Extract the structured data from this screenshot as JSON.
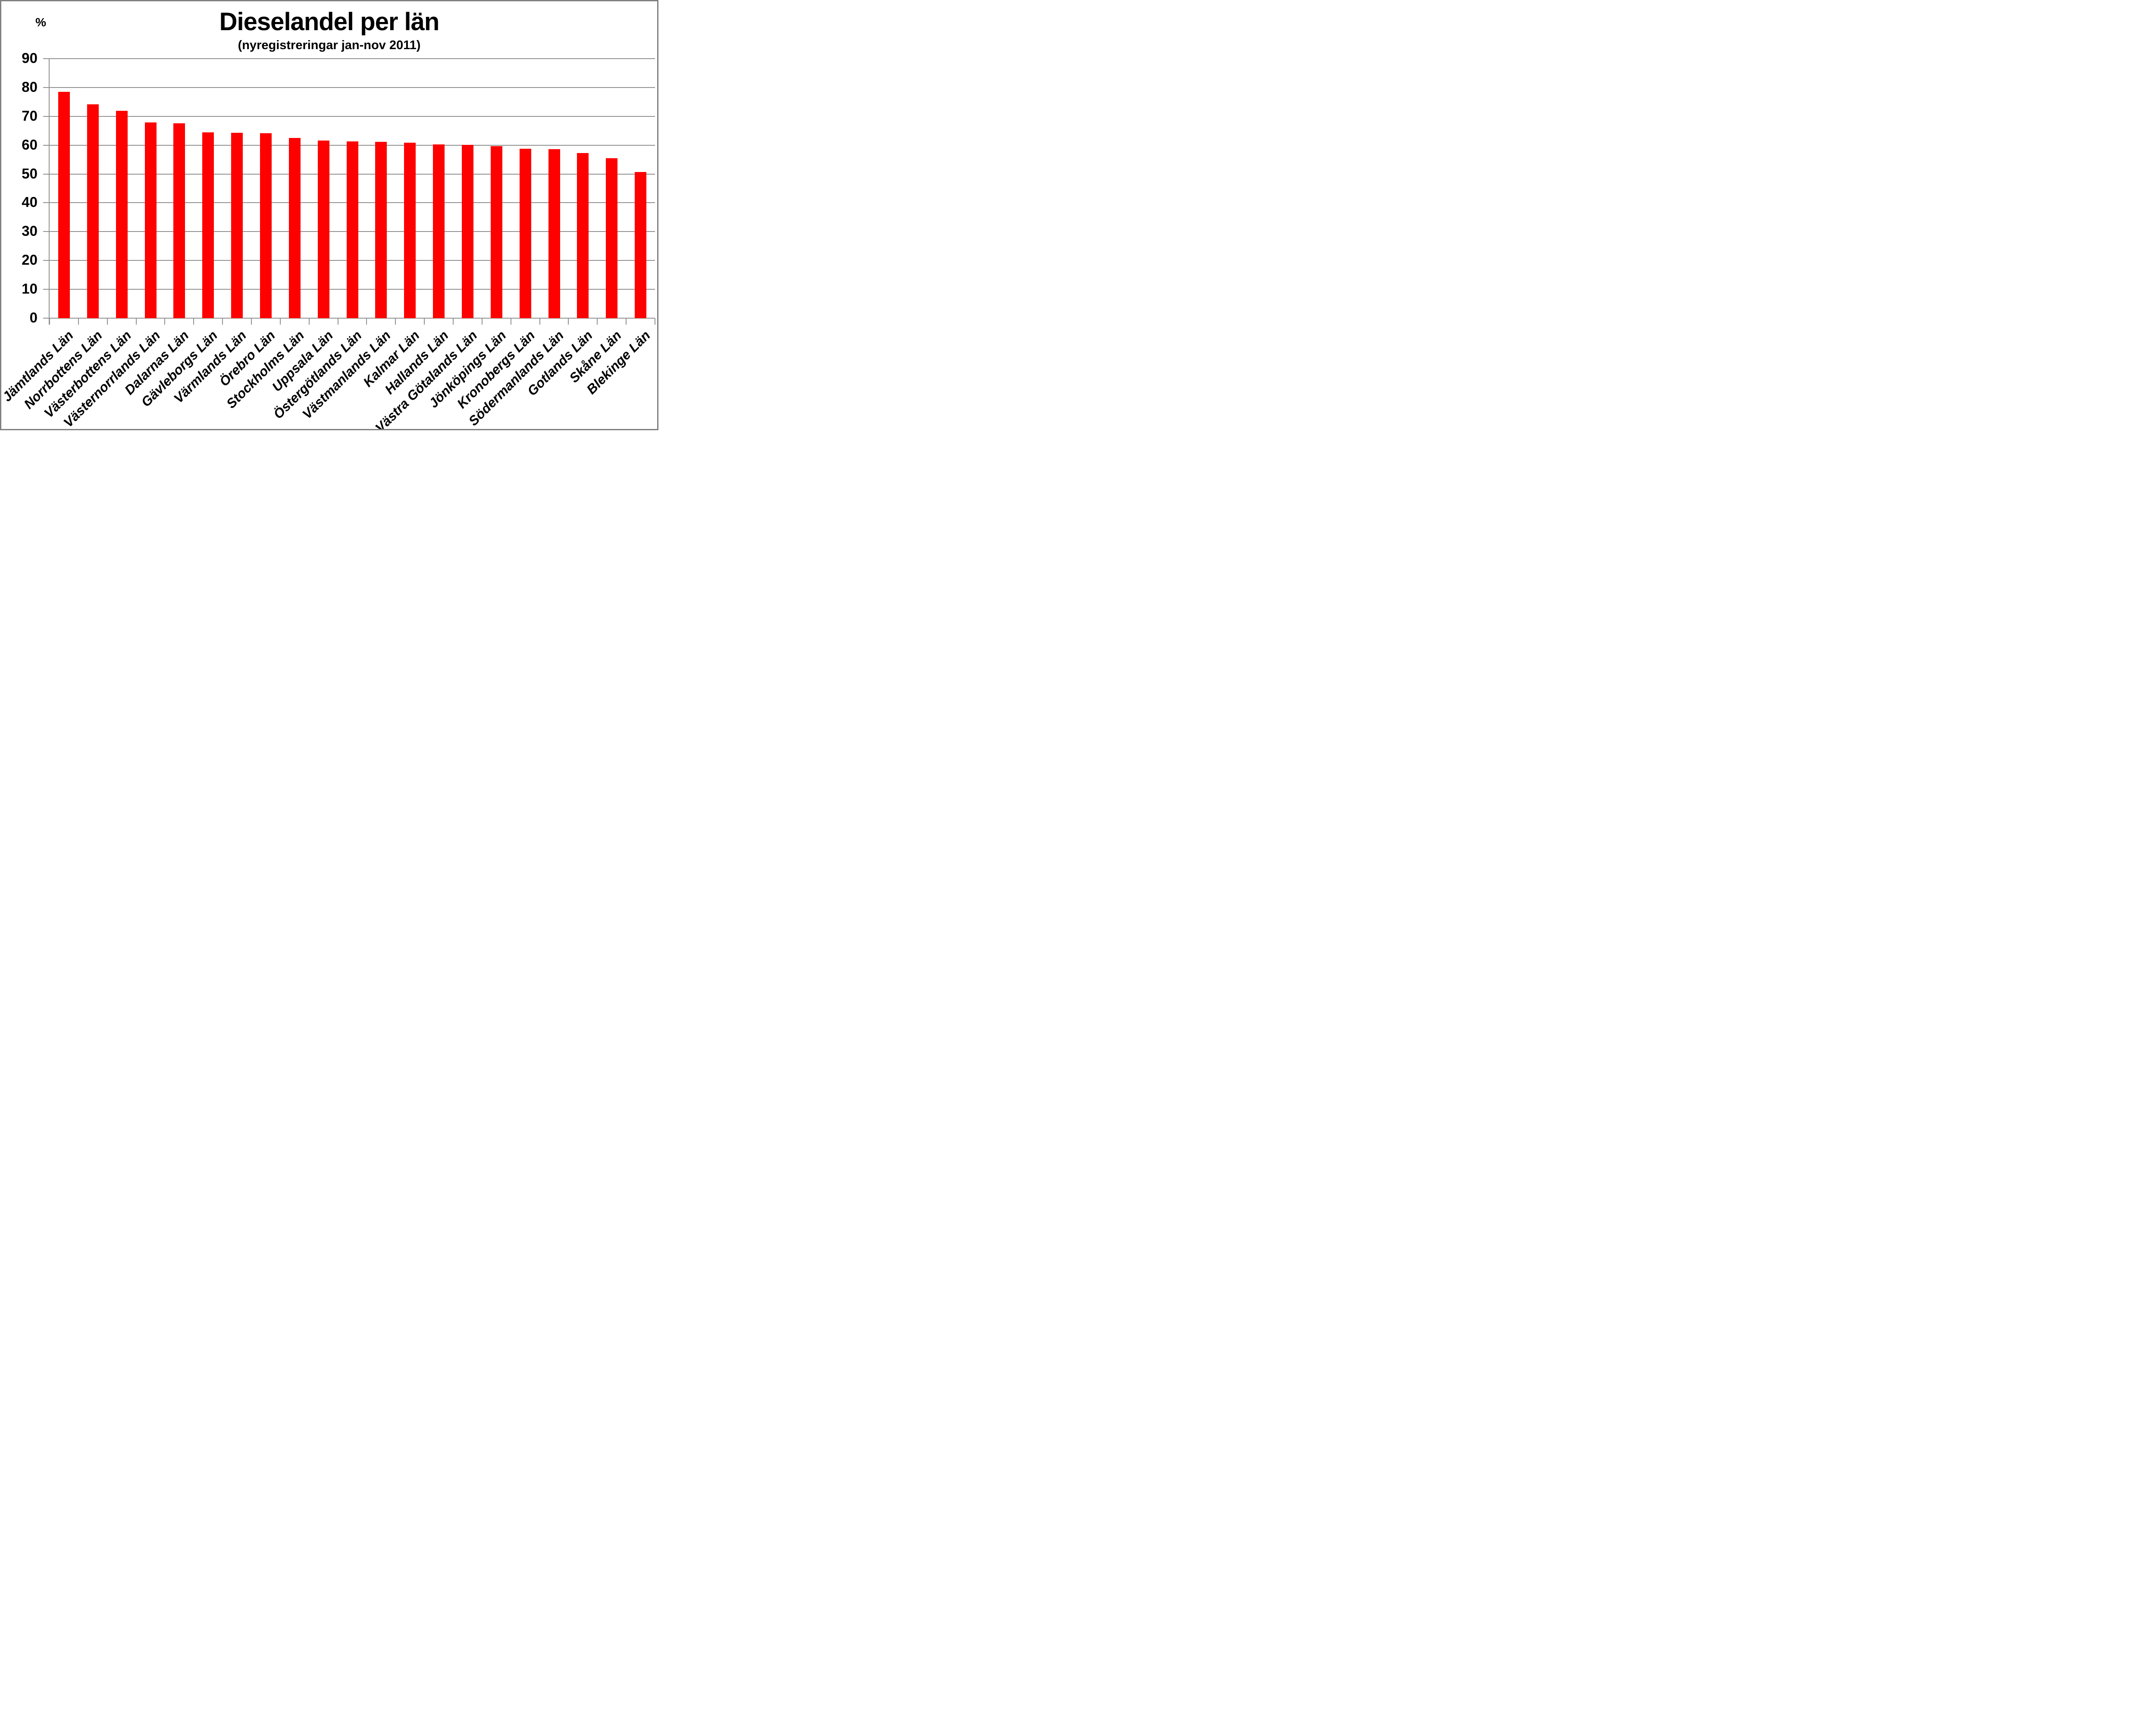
{
  "chart_data": {
    "type": "bar",
    "title": "Dieselandel per län",
    "subtitle": "(nyregistreringar jan-nov 2011)",
    "y_axis_unit_label": "%",
    "xlabel": "",
    "ylabel": "%",
    "ylim": [
      0,
      90
    ],
    "ytick_step": 10,
    "ytick_labels": [
      "90",
      "80",
      "70",
      "60",
      "50",
      "40",
      "30",
      "20",
      "10",
      "0"
    ],
    "grid": true,
    "legend_position": "none",
    "bar_color": "#FF0000",
    "gridline_color": "#919191",
    "frame_color": "#808080",
    "categories": [
      "Jämtlands Län",
      "Norrbottens Län",
      "Västerbottens Län",
      "Västernorrlands Län",
      "Dalarnas Län",
      "Gävleborgs Län",
      "Värmlands Län",
      "Örebro Län",
      "Stockholms Län",
      "Uppsala Län",
      "Östergötlands Län",
      "Västmanlands Län",
      "Kalmar Län",
      "Hallands Län",
      "Västra Götalands Län",
      "Jönköpings Län",
      "Kronobergs Län",
      "Södermanlands Län",
      "Gotlands Län",
      "Skåne Län",
      "Blekinge Län"
    ],
    "values": [
      78.5,
      74.1,
      71.9,
      67.9,
      67.6,
      64.4,
      64.3,
      64.1,
      62.5,
      61.6,
      61.3,
      61.2,
      60.8,
      60.2,
      60.1,
      59.7,
      58.8,
      58.6,
      57.2,
      55.4,
      50.7
    ]
  }
}
